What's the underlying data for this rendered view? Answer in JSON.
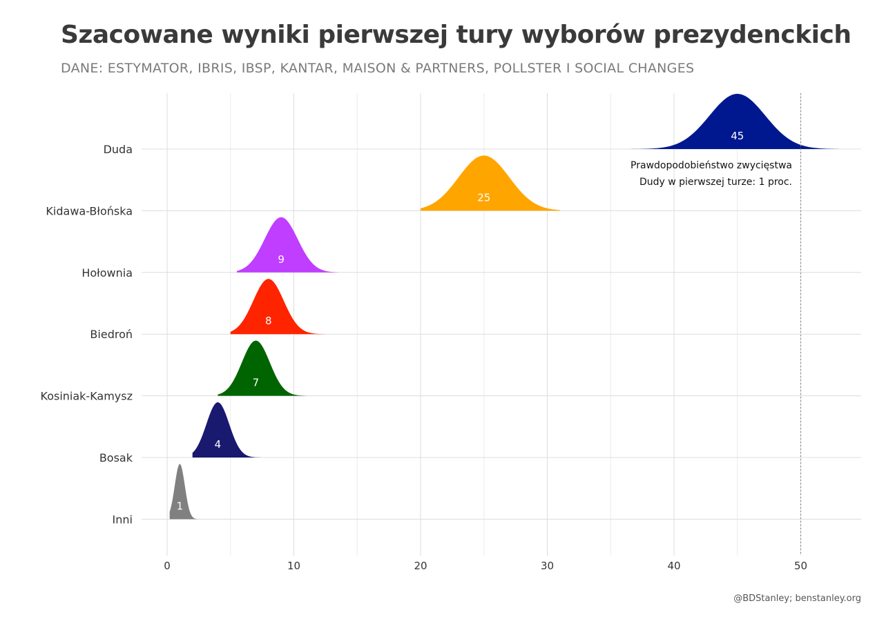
{
  "chart_data": {
    "type": "ridgeline",
    "title": "Szacowane wyniki pierwszej tury wyborów prezydenckich",
    "subtitle": "DANE: ESTYMATOR, IBRIS, IBSP, KANTAR, MAISON & PARTNERS, POLLSTER I SOCIAL CHANGES",
    "xlim": [
      -2,
      55
    ],
    "xticks": [
      0,
      10,
      20,
      30,
      40,
      50
    ],
    "grid": true,
    "reference_line": 50,
    "annotation": [
      "Prawdopodobieństwo zwycięstwa",
      "Dudy w pierwszej turze: 1 proc."
    ],
    "caption": "@BDStanley; benstanley.org",
    "series": [
      {
        "name": "Duda",
        "value": 45,
        "label": "45",
        "color": "#00188f",
        "sd": 2.2,
        "range": [
          36,
          53
        ]
      },
      {
        "name": "Kidawa-Błońska",
        "value": 25,
        "label": "25",
        "color": "#ffa500",
        "sd": 2.0,
        "range": [
          20,
          31
        ]
      },
      {
        "name": "Hołownia",
        "value": 9,
        "label": "9",
        "color": "#bf3eff",
        "sd": 1.3,
        "range": [
          5.5,
          13.5
        ]
      },
      {
        "name": "Biedroń",
        "value": 8,
        "label": "8",
        "color": "#ff2400",
        "sd": 1.2,
        "range": [
          5,
          12.5
        ]
      },
      {
        "name": "Kosiniak-Kamysz",
        "value": 7,
        "label": "7",
        "color": "#006400",
        "sd": 1.1,
        "range": [
          4,
          11
        ]
      },
      {
        "name": "Bosak",
        "value": 4,
        "label": "4",
        "color": "#191970",
        "sd": 0.9,
        "range": [
          2,
          7.5
        ]
      },
      {
        "name": "Inni",
        "value": 1,
        "label": "1",
        "color": "#808080",
        "sd": 0.4,
        "range": [
          0.2,
          3
        ]
      }
    ]
  }
}
